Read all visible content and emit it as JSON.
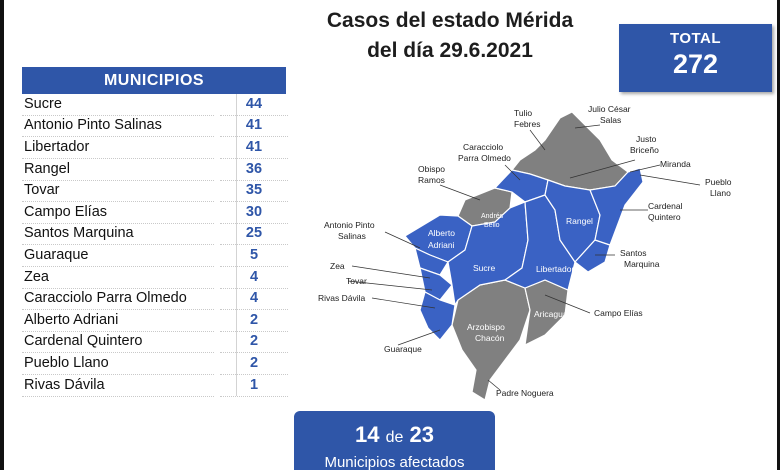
{
  "title": {
    "line1": "Casos del estado Mérida",
    "line2": "del día 29.6.2021"
  },
  "total": {
    "label": "TOTAL",
    "value": "272"
  },
  "table": {
    "header": "MUNICIPIOS",
    "rows": [
      {
        "name": "Sucre",
        "value": "44"
      },
      {
        "name": "Antonio Pinto Salinas",
        "value": "41"
      },
      {
        "name": "Libertador",
        "value": "41"
      },
      {
        "name": "Rangel",
        "value": "36"
      },
      {
        "name": "Tovar",
        "value": "35"
      },
      {
        "name": "Campo Elías",
        "value": "30"
      },
      {
        "name": "Santos Marquina",
        "value": "25"
      },
      {
        "name": "Guaraque",
        "value": "5"
      },
      {
        "name": "Zea",
        "value": "4"
      },
      {
        "name": "Caracciolo Parra Olmedo",
        "value": "4"
      },
      {
        "name": "Alberto Adriani",
        "value": "2"
      },
      {
        "name": "Cardenal Quintero",
        "value": "2"
      },
      {
        "name": "Pueblo Llano",
        "value": "2"
      },
      {
        "name": "Rivas Dávila",
        "value": "1"
      }
    ]
  },
  "affected": {
    "count": "14",
    "connector": "de",
    "total": "23",
    "label": "Municipios afectados"
  },
  "map": {
    "colors": {
      "affected": "#3a62c4",
      "unaffected": "#808080"
    },
    "inside_labels": {
      "alberto_adriani": [
        "Alberto",
        "Adriani"
      ],
      "andres_bello": [
        "Andrés",
        "Bello"
      ],
      "sucre": "Sucre",
      "rangel": "Rangel",
      "libertador": "Libertador",
      "arzobispo_chacon": [
        "Arzobispo",
        "Chacón"
      ],
      "aricagua": "Aricagua"
    },
    "callouts": {
      "tulio_febres": [
        "Tulio",
        "Febres"
      ],
      "julio_cesar_salas": [
        "Julio César",
        "Salas"
      ],
      "caracciolo_parra_olmedo": [
        "Caracciolo",
        "Parra Olmedo"
      ],
      "justo_briceno": [
        "Justo",
        "Briceño"
      ],
      "miranda": "Miranda",
      "obispo_ramos": [
        "Obispo",
        "Ramos"
      ],
      "pueblo_llano": [
        "Pueblo",
        "Llano"
      ],
      "cardenal_quintero": [
        "Cardenal",
        "Quintero"
      ],
      "antonio_pinto_salinas": [
        "Antonio Pinto",
        "Salinas"
      ],
      "santos_marquina": [
        "Santos",
        "Marquina"
      ],
      "zea": "Zea",
      "tovar": "Tovar",
      "rivas_davila": "Rivas Dávila",
      "campo_elias": "Campo Elías",
      "guaraque": "Guaraque",
      "padre_noguera": "Padre Noguera"
    }
  }
}
